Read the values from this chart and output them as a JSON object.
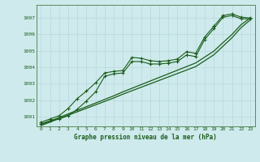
{
  "title": "Graphe pression niveau de la mer (hPa)",
  "background_color": "#ceeaec",
  "grid_color": "#b8d8dc",
  "line_color": "#1a5c1a",
  "spine_color": "#5a8a5a",
  "xlim": [
    -0.5,
    23.5
  ],
  "ylim": [
    1000.4,
    1007.8
  ],
  "yticks": [
    1001,
    1002,
    1003,
    1004,
    1005,
    1006,
    1007
  ],
  "xticks": [
    0,
    1,
    2,
    3,
    4,
    5,
    6,
    7,
    8,
    9,
    10,
    11,
    12,
    13,
    14,
    15,
    16,
    17,
    18,
    19,
    20,
    21,
    22,
    23
  ],
  "series_upper": [
    1000.65,
    1000.85,
    1001.05,
    1001.5,
    1002.1,
    1002.55,
    1003.05,
    1003.65,
    1003.75,
    1003.8,
    1004.6,
    1004.55,
    1004.4,
    1004.35,
    1004.4,
    1004.5,
    1004.95,
    1004.85,
    1005.85,
    1006.5,
    1007.15,
    1007.25,
    1007.05,
    1007.0
  ],
  "series_lower": [
    1000.55,
    1000.75,
    1000.85,
    1001.05,
    1001.45,
    1001.95,
    1002.5,
    1003.45,
    1003.6,
    1003.65,
    1004.35,
    1004.35,
    1004.2,
    1004.2,
    1004.25,
    1004.35,
    1004.75,
    1004.65,
    1005.7,
    1006.35,
    1007.05,
    1007.15,
    1006.95,
    1006.95
  ],
  "trend1": [
    1000.5,
    1000.72,
    1000.94,
    1001.16,
    1001.38,
    1001.6,
    1001.82,
    1002.04,
    1002.26,
    1002.5,
    1002.72,
    1002.94,
    1003.16,
    1003.38,
    1003.6,
    1003.82,
    1004.04,
    1004.26,
    1004.62,
    1004.98,
    1005.5,
    1006.0,
    1006.6,
    1007.0
  ],
  "trend2": [
    1000.45,
    1000.66,
    1000.87,
    1001.08,
    1001.29,
    1001.5,
    1001.71,
    1001.92,
    1002.13,
    1002.36,
    1002.57,
    1002.78,
    1002.99,
    1003.2,
    1003.41,
    1003.62,
    1003.83,
    1004.04,
    1004.4,
    1004.76,
    1005.28,
    1005.8,
    1006.42,
    1006.88
  ]
}
